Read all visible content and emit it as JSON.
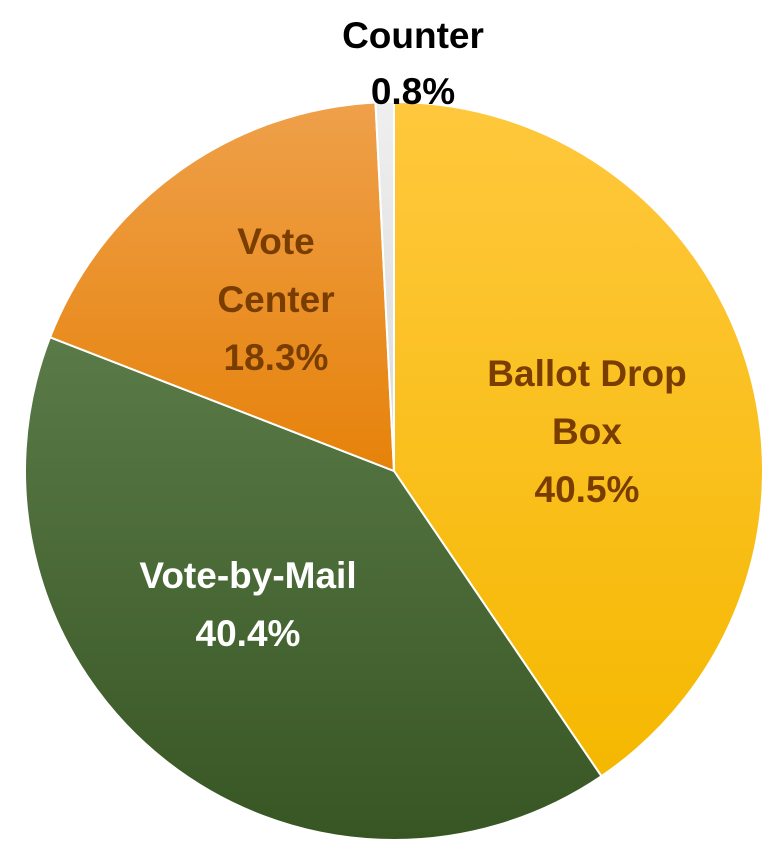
{
  "chart_data": {
    "type": "pie",
    "title": "",
    "slices": [
      {
        "name": "Ballot Drop Box",
        "value": 40.5,
        "label_lines": [
          "Ballot Drop",
          "Box",
          "40.5%"
        ],
        "color": "#F5B800",
        "color_light": "#FFC83D",
        "label_color": "#7a3d00"
      },
      {
        "name": "Vote-by-Mail",
        "value": 40.4,
        "label_lines": [
          "Vote-by-Mail",
          "40.4%"
        ],
        "color": "#375623",
        "color_light": "#5A7A48",
        "label_color": "#ffffff"
      },
      {
        "name": "Vote Center",
        "value": 18.3,
        "label_lines": [
          "Vote",
          "Center",
          "18.3%"
        ],
        "color": "#E6820A",
        "color_light": "#EFA04A",
        "label_color": "#7a3d00"
      },
      {
        "name": "Counter",
        "value": 0.8,
        "label_lines": [
          "Counter",
          "0.8%"
        ],
        "color": "#D9D9D9",
        "color_light": "#EFEFEF",
        "label_color": "#000000"
      }
    ],
    "start_angle_deg": 0,
    "direction": "clockwise"
  }
}
